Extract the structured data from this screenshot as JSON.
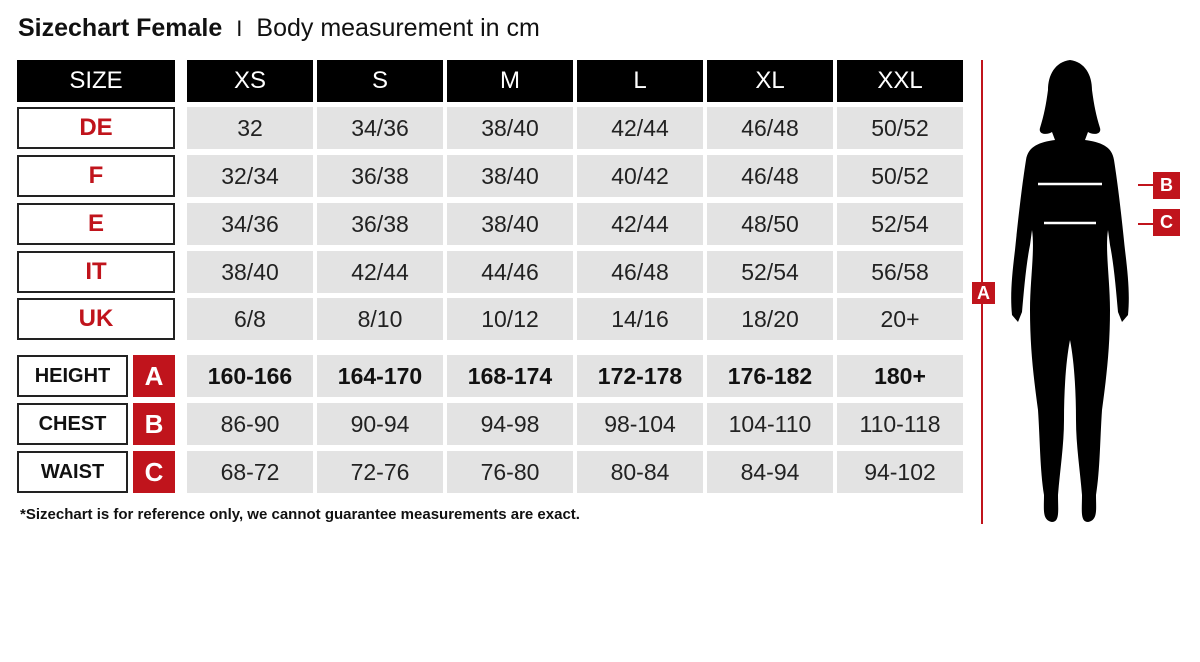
{
  "title": {
    "main": "Sizechart Female",
    "separator": "I",
    "sub": "Body measurement in cm"
  },
  "header": {
    "size_label": "SIZE",
    "sizes": [
      "XS",
      "S",
      "M",
      "L",
      "XL",
      "XXL"
    ]
  },
  "conversion_rows": [
    {
      "label": "DE",
      "values": [
        "32",
        "34/36",
        "38/40",
        "42/44",
        "46/48",
        "50/52"
      ]
    },
    {
      "label": "F",
      "values": [
        "32/34",
        "36/38",
        "38/40",
        "40/42",
        "46/48",
        "50/52"
      ]
    },
    {
      "label": "E",
      "values": [
        "34/36",
        "36/38",
        "38/40",
        "42/44",
        "48/50",
        "52/54"
      ]
    },
    {
      "label": "IT",
      "values": [
        "38/40",
        "42/44",
        "44/46",
        "46/48",
        "52/54",
        "56/58"
      ]
    },
    {
      "label": "UK",
      "values": [
        "6/8",
        "8/10",
        "10/12",
        "14/16",
        "18/20",
        "20+"
      ]
    }
  ],
  "measurement_rows": [
    {
      "label": "HEIGHT",
      "letter": "A",
      "values": [
        "160-166",
        "164-170",
        "168-174",
        "172-178",
        "176-182",
        "180+"
      ]
    },
    {
      "label": "CHEST",
      "letter": "B",
      "values": [
        "86-90",
        "90-94",
        "94-98",
        "98-104",
        "104-110",
        "110-118"
      ]
    },
    {
      "label": "WAIST",
      "letter": "C",
      "values": [
        "68-72",
        "72-76",
        "76-80",
        "80-84",
        "84-94",
        "94-102"
      ]
    }
  ],
  "footnote": "*Sizechart is for reference only, we cannot guarantee measurements are exact.",
  "figure": {
    "height_marker": "A",
    "chest_marker": "B",
    "waist_marker": "C"
  },
  "colors": {
    "accent": "#c0141c",
    "header_bg": "#000000",
    "cell_bg": "#e3e3e3"
  }
}
